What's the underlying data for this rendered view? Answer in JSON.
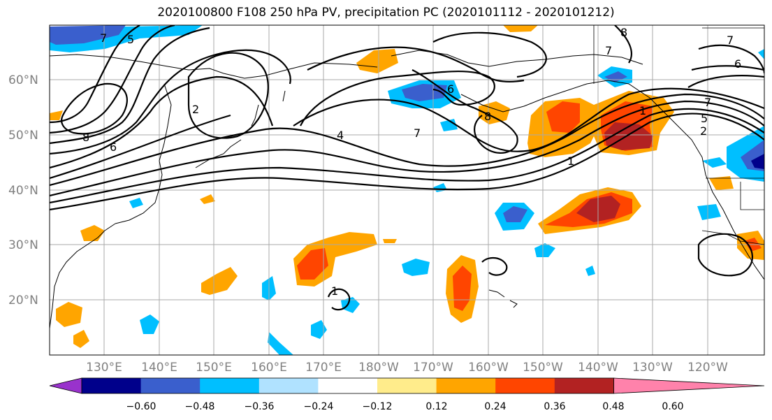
{
  "title": "2020100800 F108 250 hPa PV, precipitation PC (2020101112 - 2020101212)",
  "lat_labels": [
    "60°N",
    "50°N",
    "40°N",
    "30°N",
    "20°N"
  ],
  "lon_labels": [
    "130°E",
    "140°E",
    "150°E",
    "160°E",
    "170°E",
    "180°W",
    "170°W",
    "160°W",
    "150°W",
    "140°W",
    "130°W",
    "120°W"
  ],
  "colorbar": {
    "colors": [
      "#9932cc",
      "#00008b",
      "#3a5fcd",
      "#00bfff",
      "#b0e2ff",
      "#ffffff",
      "#ffec8b",
      "#ffa500",
      "#ff4500",
      "#b22222",
      "#ff82ab"
    ],
    "tick_labels": [
      "−0.60",
      "−0.48",
      "−0.36",
      "−0.24",
      "−0.12",
      "0.12",
      "0.24",
      "0.36",
      "0.48",
      "0.60"
    ]
  },
  "contour_labels": [
    "5",
    "7",
    "8",
    "6",
    "2",
    "4",
    "7",
    "6",
    "8",
    "1",
    "1",
    "7",
    "8",
    "7",
    "6",
    "7",
    "5",
    "2",
    "1"
  ]
}
